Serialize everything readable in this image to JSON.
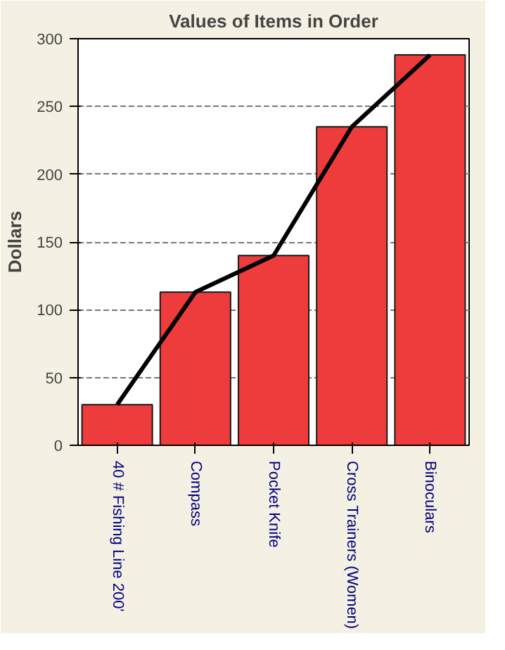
{
  "chart_data": {
    "type": "bar",
    "title": "Values of Items in Order",
    "ylabel": "Dollars",
    "categories": [
      "40 # Fishing Line 200'",
      "Compass",
      "Pocket Knife",
      "Cross Trainers (Women)",
      "Binoculars"
    ],
    "series": [
      {
        "color": "#ee3b3b",
        "values": [
          30,
          113,
          140,
          235,
          288
        ]
      },
      {
        "type": "line",
        "color": "#000000",
        "values": [
          30,
          113,
          140,
          235,
          288
        ]
      }
    ],
    "ylim": [
      0,
      300
    ],
    "yticks": [
      0,
      50,
      100,
      150,
      200,
      250,
      300
    ],
    "grid": "y",
    "line_style": "solid"
  }
}
